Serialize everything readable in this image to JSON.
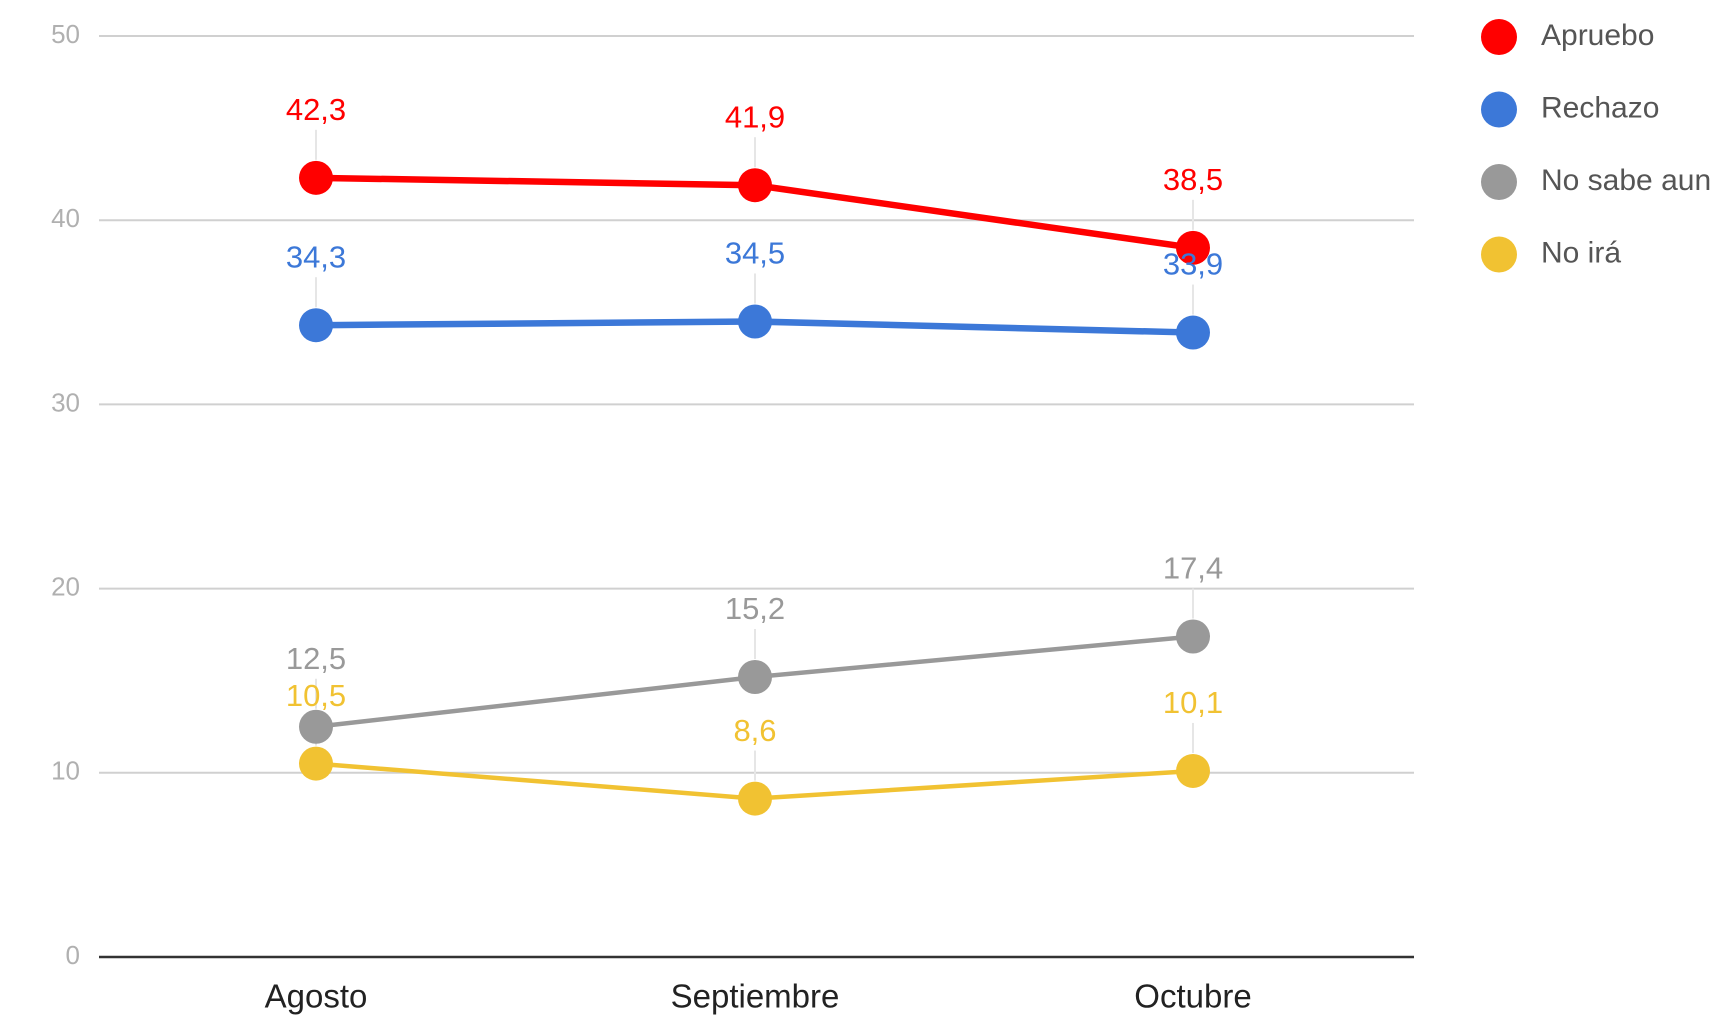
{
  "chart_data": {
    "type": "line",
    "categories": [
      "Agosto",
      "Septiembre",
      "Octubre"
    ],
    "series": [
      {
        "name": "Apruebo",
        "color": "#ff0000",
        "values": [
          42.3,
          41.9,
          38.5
        ],
        "value_labels": [
          "42,3",
          "41,9",
          "38,5"
        ]
      },
      {
        "name": "Rechazo",
        "color": "#3c78d8",
        "values": [
          34.3,
          34.5,
          33.9
        ],
        "value_labels": [
          "34,3",
          "34,5",
          "33,9"
        ]
      },
      {
        "name": "No sabe aun",
        "color": "#999999",
        "values": [
          12.5,
          15.2,
          17.4
        ],
        "value_labels": [
          "12,5",
          "15,2",
          "17,4"
        ]
      },
      {
        "name": "No irá",
        "color": "#f1c232",
        "values": [
          10.5,
          8.6,
          10.1
        ],
        "value_labels": [
          "10,5",
          "8,6",
          "10,1"
        ]
      }
    ],
    "ylim": [
      0,
      50
    ],
    "yticks": [
      0,
      10,
      20,
      30,
      40,
      50
    ],
    "grid": true,
    "legend": "right"
  }
}
